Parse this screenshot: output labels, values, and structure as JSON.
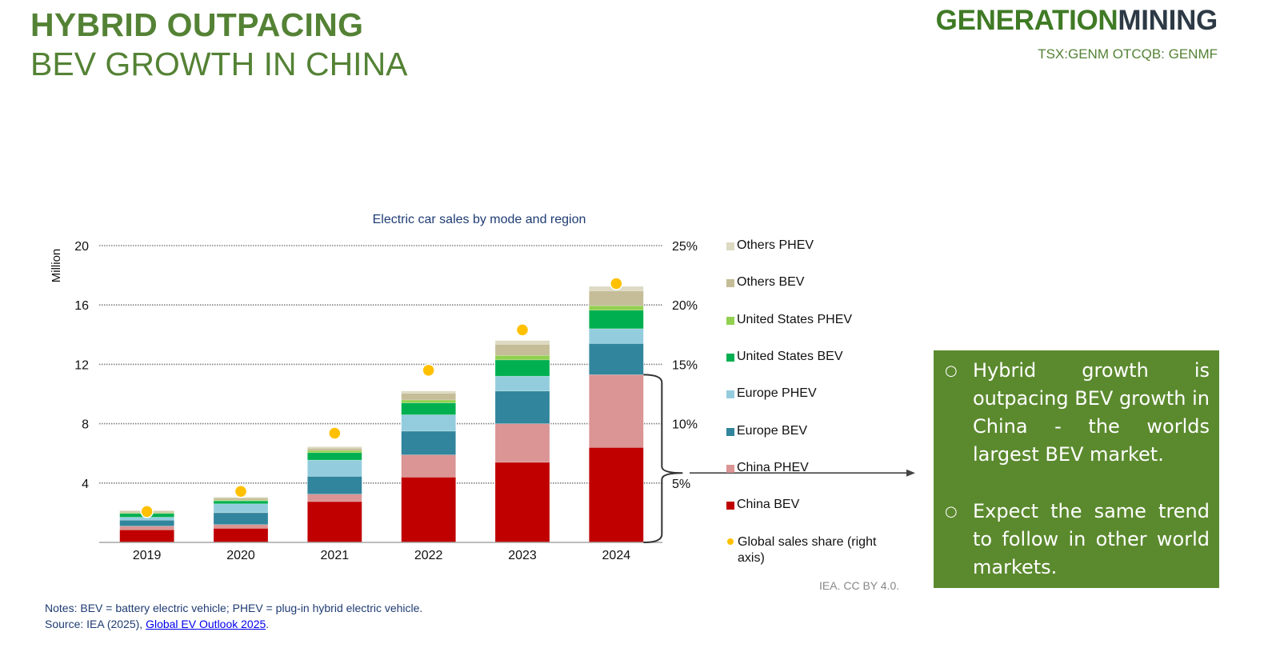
{
  "header": {
    "title_line1": "HYBRID OUTPACING",
    "title_line2": "BEV GROWTH IN CHINA",
    "logo_part1": "GENERATION",
    "logo_part2": "MINING",
    "ticker": "TSX:GENM OTCQB: GENMF"
  },
  "chart_data": {
    "type": "bar",
    "stacked": true,
    "title": "Electric car sales by mode and region",
    "ylabel": "Million",
    "xlabel": "",
    "categories": [
      "2019",
      "2020",
      "2021",
      "2022",
      "2023",
      "2024"
    ],
    "ylim": [
      0,
      20
    ],
    "yticks": [
      "4",
      "8",
      "12",
      "16",
      "20"
    ],
    "yticks_values": [
      4,
      8,
      12,
      16,
      20
    ],
    "y2lim": [
      0,
      25
    ],
    "y2ticks": [
      "5%",
      "10%",
      "15%",
      "20%",
      "25%"
    ],
    "y2ticks_values": [
      5,
      10,
      15,
      20,
      25
    ],
    "grid": true,
    "legend_position": "right",
    "series": [
      {
        "name": "China BEV",
        "color": "#c00000",
        "values": [
          0.85,
          0.95,
          2.75,
          4.4,
          5.4,
          6.4
        ]
      },
      {
        "name": "China PHEV",
        "color": "#da9594",
        "values": [
          0.25,
          0.25,
          0.5,
          1.5,
          2.6,
          4.9
        ]
      },
      {
        "name": "Europe BEV",
        "color": "#31859c",
        "values": [
          0.4,
          0.8,
          1.2,
          1.6,
          2.2,
          2.1
        ]
      },
      {
        "name": "Europe PHEV",
        "color": "#93cddd",
        "values": [
          0.2,
          0.6,
          1.1,
          1.1,
          1.0,
          1.0
        ]
      },
      {
        "name": "United States BEV",
        "color": "#00b050",
        "values": [
          0.25,
          0.2,
          0.5,
          0.8,
          1.1,
          1.25
        ]
      },
      {
        "name": "United States PHEV",
        "color": "#92d050",
        "values": [
          0.05,
          0.05,
          0.15,
          0.2,
          0.3,
          0.3
        ]
      },
      {
        "name": "Others BEV",
        "color": "#c4bd97",
        "values": [
          0.1,
          0.15,
          0.15,
          0.45,
          0.75,
          1.0
        ]
      },
      {
        "name": "Others PHEV",
        "color": "#ddd9c3",
        "values": [
          0.05,
          0.05,
          0.1,
          0.15,
          0.25,
          0.3
        ]
      }
    ],
    "line_series": {
      "name": "Global sales share (right axis)",
      "color": "#ffc000",
      "axis": "right",
      "unit": "%",
      "values": [
        2.6,
        4.3,
        9.2,
        14.5,
        17.9,
        21.8
      ]
    },
    "legend_order": [
      "Others PHEV",
      "Others BEV",
      "United States PHEV",
      "United States BEV",
      "Europe PHEV",
      "Europe BEV",
      "China PHEV",
      "China BEV",
      "Global sales share (right axis)"
    ],
    "annotation": "Brace around 2024 China BEV + China PHEV with arrow pointing to callout"
  },
  "credit": "IEA. CC BY 4.0.",
  "notes": {
    "line1": "Notes: BEV = battery electric vehicle; PHEV = plug-in hybrid electric vehicle.",
    "source_prefix": "Source: IEA (2025), ",
    "source_link": "Global EV Outlook 2025",
    "source_suffix": "."
  },
  "callout": {
    "bullet_symbol": "○",
    "bullets": [
      "Hybrid growth is outpacing BEV growth in China - the worlds largest BEV market.",
      "Expect the same trend to follow in other world markets."
    ]
  }
}
